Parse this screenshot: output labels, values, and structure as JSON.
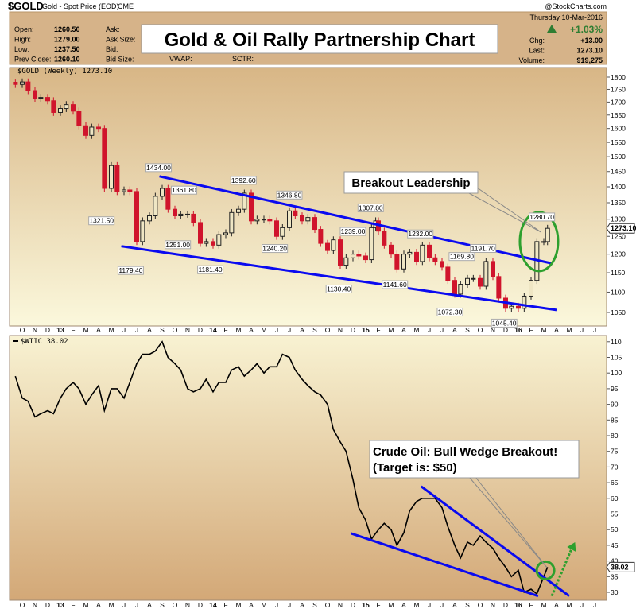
{
  "header": {
    "symbol": "$GOLD",
    "name": "Gold - Spot Price (EOD)",
    "exchange": "CME",
    "copyright": "@StockCharts.com",
    "fields_left": [
      {
        "label": "Open:",
        "value": "1260.50"
      },
      {
        "label": "High:",
        "value": "1279.00"
      },
      {
        "label": "Low:",
        "value": "1237.50"
      },
      {
        "label": "Prev Close:",
        "value": "1260.10"
      }
    ],
    "fields_mid": [
      "Ask:",
      "Ask Size:",
      "Bid:",
      "Bid Size:"
    ],
    "vwap_label": "VWAP:",
    "sctr_label": "SCTR:",
    "date": "Thursday  10-Mar-2016",
    "pct_change": "+1.03%",
    "fields_right": [
      {
        "label": "Chg:",
        "value": "+13.00"
      },
      {
        "label": "Last:",
        "value": "1273.10"
      },
      {
        "label": "Volume:",
        "value": "919,275"
      }
    ],
    "up_color": "#2e7d32"
  },
  "title": "Gold & Oil Rally Partnership Chart",
  "colors": {
    "down": "#d0142c",
    "trendline": "#0a0af0",
    "highlight": "#2ea02e",
    "line": "#000000"
  },
  "chart_data": [
    {
      "type": "candlestick",
      "legend": "$GOLD (Weekly) 1273.10",
      "last_tag": "1273.10",
      "y_scale": "log",
      "ylim": [
        1030,
        1830
      ],
      "yticks": [
        1050,
        1100,
        1150,
        1200,
        1250,
        1300,
        1350,
        1400,
        1450,
        1500,
        1550,
        1600,
        1650,
        1700,
        1750,
        1800
      ],
      "x_tick_labels": [
        "O",
        "N",
        "D",
        "13",
        "F",
        "M",
        "A",
        "M",
        "J",
        "J",
        "A",
        "S",
        "O",
        "N",
        "D",
        "14",
        "F",
        "M",
        "A",
        "M",
        "J",
        "J",
        "A",
        "S",
        "O",
        "N",
        "D",
        "15",
        "F",
        "M",
        "A",
        "M",
        "J",
        "J",
        "A",
        "S",
        "O",
        "N",
        "D",
        "16",
        "F",
        "M",
        "A",
        "M",
        "J",
        "J"
      ],
      "x": [
        "2012-09-15",
        "2012-10-01",
        "2012-10-15",
        "2012-11-01",
        "2012-11-15",
        "2012-12-01",
        "2012-12-15",
        "2013-01-01",
        "2013-01-15",
        "2013-02-01",
        "2013-02-15",
        "2013-03-01",
        "2013-03-15",
        "2013-04-01",
        "2013-04-15",
        "2013-05-01",
        "2013-05-15",
        "2013-06-01",
        "2013-06-15",
        "2013-07-01",
        "2013-07-15",
        "2013-08-01",
        "2013-08-15",
        "2013-09-01",
        "2013-09-15",
        "2013-10-01",
        "2013-10-15",
        "2013-11-01",
        "2013-11-15",
        "2013-12-01",
        "2013-12-15",
        "2014-01-01",
        "2014-01-15",
        "2014-02-01",
        "2014-02-15",
        "2014-03-01",
        "2014-03-15",
        "2014-04-01",
        "2014-04-15",
        "2014-05-01",
        "2014-05-15",
        "2014-06-01",
        "2014-06-15",
        "2014-07-01",
        "2014-07-15",
        "2014-08-01",
        "2014-08-15",
        "2014-09-01",
        "2014-09-15",
        "2014-10-01",
        "2014-10-15",
        "2014-11-01",
        "2014-11-15",
        "2014-12-01",
        "2014-12-15",
        "2015-01-01",
        "2015-01-15",
        "2015-01-25",
        "2015-02-01",
        "2015-02-15",
        "2015-03-01",
        "2015-03-15",
        "2015-04-01",
        "2015-04-15",
        "2015-05-01",
        "2015-05-15",
        "2015-06-01",
        "2015-06-15",
        "2015-07-01",
        "2015-07-15",
        "2015-08-01",
        "2015-08-15",
        "2015-09-01",
        "2015-09-15",
        "2015-10-01",
        "2015-10-15",
        "2015-11-01",
        "2015-11-15",
        "2015-12-01",
        "2015-12-15",
        "2016-01-01",
        "2016-01-15",
        "2016-02-01",
        "2016-02-15",
        "2016-03-01",
        "2016-03-10"
      ],
      "close": [
        1770,
        1780,
        1745,
        1715,
        1718,
        1705,
        1660,
        1675,
        1690,
        1665,
        1610,
        1575,
        1605,
        1600,
        1395,
        1470,
        1385,
        1390,
        1385,
        1235,
        1295,
        1310,
        1370,
        1395,
        1330,
        1310,
        1315,
        1315,
        1290,
        1230,
        1235,
        1225,
        1255,
        1260,
        1320,
        1330,
        1380,
        1295,
        1300,
        1300,
        1295,
        1250,
        1275,
        1325,
        1310,
        1295,
        1305,
        1270,
        1230,
        1210,
        1240,
        1170,
        1190,
        1200,
        1195,
        1185,
        1275,
        1295,
        1265,
        1225,
        1200,
        1160,
        1200,
        1205,
        1180,
        1225,
        1190,
        1180,
        1165,
        1130,
        1095,
        1120,
        1135,
        1135,
        1115,
        1180,
        1140,
        1085,
        1060,
        1065,
        1060,
        1090,
        1130,
        1235,
        1235,
        1273.1
      ],
      "annotations": [
        {
          "text": "1321.50",
          "date": "2013-04-08",
          "kind": "low"
        },
        {
          "text": "1179.40",
          "date": "2013-06-17",
          "kind": "low"
        },
        {
          "text": "1434.00",
          "date": "2013-08-23",
          "kind": "high"
        },
        {
          "text": "1361.80",
          "date": "2013-10-23",
          "kind": "high"
        },
        {
          "text": "1251.00",
          "date": "2013-10-08",
          "kind": "low"
        },
        {
          "text": "1181.40",
          "date": "2013-12-25",
          "kind": "low"
        },
        {
          "text": "1392.60",
          "date": "2014-03-13",
          "kind": "high"
        },
        {
          "text": "1346.80",
          "date": "2014-07-01",
          "kind": "high"
        },
        {
          "text": "1240.20",
          "date": "2014-05-27",
          "kind": "low"
        },
        {
          "text": "1130.40",
          "date": "2014-10-28",
          "kind": "low"
        },
        {
          "text": "1239.00",
          "date": "2014-12-01",
          "kind": "high"
        },
        {
          "text": "1307.80",
          "date": "2015-01-13",
          "kind": "high"
        },
        {
          "text": "1141.60",
          "date": "2015-03-10",
          "kind": "low"
        },
        {
          "text": "1232.00",
          "date": "2015-05-10",
          "kind": "high"
        },
        {
          "text": "1169.80",
          "date": "2015-08-18",
          "kind": "high"
        },
        {
          "text": "1072.30",
          "date": "2015-07-20",
          "kind": "low"
        },
        {
          "text": "1191.70",
          "date": "2015-10-08",
          "kind": "high"
        },
        {
          "text": "1045.40",
          "date": "2015-11-28",
          "kind": "low"
        },
        {
          "text": "1280.70",
          "date": "2016-02-27",
          "kind": "high"
        }
      ],
      "trendlines": [
        {
          "from": [
            "2013-08-25",
            1434
          ],
          "to": [
            "2016-03-20",
            1175
          ]
        },
        {
          "from": [
            "2013-05-25",
            1222
          ],
          "to": [
            "2016-04-01",
            1056
          ]
        }
      ],
      "highlight_ellipse": {
        "center": [
          "2016-02-20",
          1235
        ]
      },
      "callout": {
        "text": "Breakout Leadership",
        "points_to": [
          "2016-02-25",
          1262
        ]
      }
    },
    {
      "type": "line",
      "legend": "$WTIC 38.02",
      "last_tag": "38.02",
      "y_scale": "linear",
      "ylim": [
        28,
        112
      ],
      "yticks": [
        30,
        35,
        40,
        45,
        50,
        55,
        60,
        65,
        70,
        75,
        80,
        85,
        90,
        95,
        100,
        105,
        110
      ],
      "x": [
        "2012-09-15",
        "2012-10-01",
        "2012-10-15",
        "2012-11-01",
        "2012-11-15",
        "2012-12-01",
        "2012-12-15",
        "2013-01-01",
        "2013-01-15",
        "2013-02-01",
        "2013-02-15",
        "2013-03-01",
        "2013-03-15",
        "2013-04-01",
        "2013-04-15",
        "2013-05-01",
        "2013-05-15",
        "2013-06-01",
        "2013-06-15",
        "2013-07-01",
        "2013-07-15",
        "2013-08-01",
        "2013-08-15",
        "2013-09-01",
        "2013-09-15",
        "2013-10-01",
        "2013-10-15",
        "2013-11-01",
        "2013-11-15",
        "2013-12-01",
        "2013-12-15",
        "2014-01-01",
        "2014-01-15",
        "2014-02-01",
        "2014-02-15",
        "2014-03-01",
        "2014-03-15",
        "2014-04-01",
        "2014-04-15",
        "2014-05-01",
        "2014-05-15",
        "2014-06-01",
        "2014-06-15",
        "2014-07-01",
        "2014-07-15",
        "2014-08-01",
        "2014-08-15",
        "2014-09-01",
        "2014-09-15",
        "2014-10-01",
        "2014-10-15",
        "2014-11-01",
        "2014-11-15",
        "2014-12-01",
        "2014-12-15",
        "2015-01-01",
        "2015-01-15",
        "2015-02-01",
        "2015-02-15",
        "2015-03-01",
        "2015-03-15",
        "2015-04-01",
        "2015-04-15",
        "2015-05-01",
        "2015-05-15",
        "2015-06-01",
        "2015-06-15",
        "2015-07-01",
        "2015-07-15",
        "2015-08-01",
        "2015-08-15",
        "2015-09-01",
        "2015-09-15",
        "2015-10-01",
        "2015-10-15",
        "2015-11-01",
        "2015-11-15",
        "2015-12-01",
        "2015-12-15",
        "2016-01-01",
        "2016-01-15",
        "2016-02-01",
        "2016-02-15",
        "2016-03-01",
        "2016-03-10"
      ],
      "values": [
        99,
        92,
        91,
        86,
        87,
        88,
        87,
        92,
        95,
        97,
        95,
        90,
        93,
        96,
        88,
        95,
        95,
        92,
        97,
        103,
        106,
        106,
        107,
        110,
        105,
        103,
        101,
        95,
        94,
        95,
        98,
        94,
        97,
        97,
        101,
        102,
        99,
        101,
        103,
        100,
        102,
        102,
        106,
        105,
        101,
        98,
        96,
        94,
        93,
        90,
        82,
        78,
        75,
        66,
        57,
        53,
        47,
        50,
        52,
        50,
        45,
        49,
        56,
        59,
        60,
        60,
        60,
        57,
        51,
        45,
        41,
        46,
        45,
        48,
        46,
        44,
        41,
        38,
        35,
        37,
        30,
        31,
        29.5,
        35,
        38.02
      ],
      "trendlines": [
        {
          "from": [
            "2015-05-12",
            63.8
          ],
          "to": [
            "2016-05-01",
            28.8
          ]
        },
        {
          "from": [
            "2014-11-27",
            48.8
          ],
          "to": [
            "2016-02-18",
            28.8
          ]
        }
      ],
      "highlight_circle": {
        "center": [
          "2016-03-05",
          37
        ]
      },
      "projection_arrow": {
        "from": [
          "2016-03-20",
          28.8
        ],
        "to": [
          "2016-05-15",
          46
        ]
      },
      "callout": {
        "lines": [
          "Crude Oil:  Bull Wedge Breakout!",
          "(Target is: $50)"
        ],
        "points_to": [
          "2016-03-08",
          38
        ]
      }
    }
  ]
}
